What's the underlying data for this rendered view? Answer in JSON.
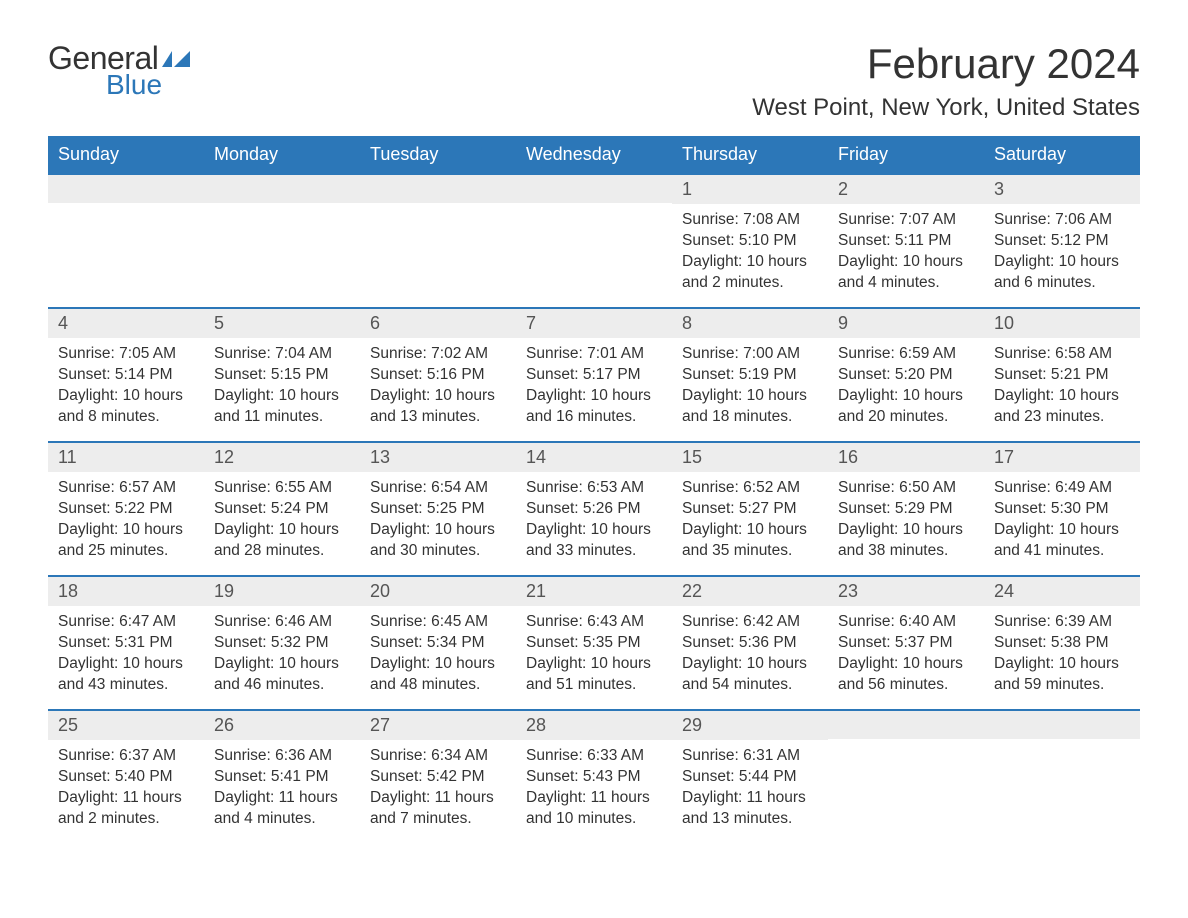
{
  "logo": {
    "general": "General",
    "blue": "Blue"
  },
  "title": "February 2024",
  "location": "West Point, New York, United States",
  "day_headers": [
    "Sunday",
    "Monday",
    "Tuesday",
    "Wednesday",
    "Thursday",
    "Friday",
    "Saturday"
  ],
  "colors": {
    "accent": "#2c77b8",
    "row_bg": "#ededed",
    "text": "#333333",
    "header_text": "#ffffff"
  },
  "weeks": [
    [
      {
        "day": "",
        "sunrise": "",
        "sunset": "",
        "daylight": ""
      },
      {
        "day": "",
        "sunrise": "",
        "sunset": "",
        "daylight": ""
      },
      {
        "day": "",
        "sunrise": "",
        "sunset": "",
        "daylight": ""
      },
      {
        "day": "",
        "sunrise": "",
        "sunset": "",
        "daylight": ""
      },
      {
        "day": "1",
        "sunrise": "Sunrise: 7:08 AM",
        "sunset": "Sunset: 5:10 PM",
        "daylight": "Daylight: 10 hours and 2 minutes."
      },
      {
        "day": "2",
        "sunrise": "Sunrise: 7:07 AM",
        "sunset": "Sunset: 5:11 PM",
        "daylight": "Daylight: 10 hours and 4 minutes."
      },
      {
        "day": "3",
        "sunrise": "Sunrise: 7:06 AM",
        "sunset": "Sunset: 5:12 PM",
        "daylight": "Daylight: 10 hours and 6 minutes."
      }
    ],
    [
      {
        "day": "4",
        "sunrise": "Sunrise: 7:05 AM",
        "sunset": "Sunset: 5:14 PM",
        "daylight": "Daylight: 10 hours and 8 minutes."
      },
      {
        "day": "5",
        "sunrise": "Sunrise: 7:04 AM",
        "sunset": "Sunset: 5:15 PM",
        "daylight": "Daylight: 10 hours and 11 minutes."
      },
      {
        "day": "6",
        "sunrise": "Sunrise: 7:02 AM",
        "sunset": "Sunset: 5:16 PM",
        "daylight": "Daylight: 10 hours and 13 minutes."
      },
      {
        "day": "7",
        "sunrise": "Sunrise: 7:01 AM",
        "sunset": "Sunset: 5:17 PM",
        "daylight": "Daylight: 10 hours and 16 minutes."
      },
      {
        "day": "8",
        "sunrise": "Sunrise: 7:00 AM",
        "sunset": "Sunset: 5:19 PM",
        "daylight": "Daylight: 10 hours and 18 minutes."
      },
      {
        "day": "9",
        "sunrise": "Sunrise: 6:59 AM",
        "sunset": "Sunset: 5:20 PM",
        "daylight": "Daylight: 10 hours and 20 minutes."
      },
      {
        "day": "10",
        "sunrise": "Sunrise: 6:58 AM",
        "sunset": "Sunset: 5:21 PM",
        "daylight": "Daylight: 10 hours and 23 minutes."
      }
    ],
    [
      {
        "day": "11",
        "sunrise": "Sunrise: 6:57 AM",
        "sunset": "Sunset: 5:22 PM",
        "daylight": "Daylight: 10 hours and 25 minutes."
      },
      {
        "day": "12",
        "sunrise": "Sunrise: 6:55 AM",
        "sunset": "Sunset: 5:24 PM",
        "daylight": "Daylight: 10 hours and 28 minutes."
      },
      {
        "day": "13",
        "sunrise": "Sunrise: 6:54 AM",
        "sunset": "Sunset: 5:25 PM",
        "daylight": "Daylight: 10 hours and 30 minutes."
      },
      {
        "day": "14",
        "sunrise": "Sunrise: 6:53 AM",
        "sunset": "Sunset: 5:26 PM",
        "daylight": "Daylight: 10 hours and 33 minutes."
      },
      {
        "day": "15",
        "sunrise": "Sunrise: 6:52 AM",
        "sunset": "Sunset: 5:27 PM",
        "daylight": "Daylight: 10 hours and 35 minutes."
      },
      {
        "day": "16",
        "sunrise": "Sunrise: 6:50 AM",
        "sunset": "Sunset: 5:29 PM",
        "daylight": "Daylight: 10 hours and 38 minutes."
      },
      {
        "day": "17",
        "sunrise": "Sunrise: 6:49 AM",
        "sunset": "Sunset: 5:30 PM",
        "daylight": "Daylight: 10 hours and 41 minutes."
      }
    ],
    [
      {
        "day": "18",
        "sunrise": "Sunrise: 6:47 AM",
        "sunset": "Sunset: 5:31 PM",
        "daylight": "Daylight: 10 hours and 43 minutes."
      },
      {
        "day": "19",
        "sunrise": "Sunrise: 6:46 AM",
        "sunset": "Sunset: 5:32 PM",
        "daylight": "Daylight: 10 hours and 46 minutes."
      },
      {
        "day": "20",
        "sunrise": "Sunrise: 6:45 AM",
        "sunset": "Sunset: 5:34 PM",
        "daylight": "Daylight: 10 hours and 48 minutes."
      },
      {
        "day": "21",
        "sunrise": "Sunrise: 6:43 AM",
        "sunset": "Sunset: 5:35 PM",
        "daylight": "Daylight: 10 hours and 51 minutes."
      },
      {
        "day": "22",
        "sunrise": "Sunrise: 6:42 AM",
        "sunset": "Sunset: 5:36 PM",
        "daylight": "Daylight: 10 hours and 54 minutes."
      },
      {
        "day": "23",
        "sunrise": "Sunrise: 6:40 AM",
        "sunset": "Sunset: 5:37 PM",
        "daylight": "Daylight: 10 hours and 56 minutes."
      },
      {
        "day": "24",
        "sunrise": "Sunrise: 6:39 AM",
        "sunset": "Sunset: 5:38 PM",
        "daylight": "Daylight: 10 hours and 59 minutes."
      }
    ],
    [
      {
        "day": "25",
        "sunrise": "Sunrise: 6:37 AM",
        "sunset": "Sunset: 5:40 PM",
        "daylight": "Daylight: 11 hours and 2 minutes."
      },
      {
        "day": "26",
        "sunrise": "Sunrise: 6:36 AM",
        "sunset": "Sunset: 5:41 PM",
        "daylight": "Daylight: 11 hours and 4 minutes."
      },
      {
        "day": "27",
        "sunrise": "Sunrise: 6:34 AM",
        "sunset": "Sunset: 5:42 PM",
        "daylight": "Daylight: 11 hours and 7 minutes."
      },
      {
        "day": "28",
        "sunrise": "Sunrise: 6:33 AM",
        "sunset": "Sunset: 5:43 PM",
        "daylight": "Daylight: 11 hours and 10 minutes."
      },
      {
        "day": "29",
        "sunrise": "Sunrise: 6:31 AM",
        "sunset": "Sunset: 5:44 PM",
        "daylight": "Daylight: 11 hours and 13 minutes."
      },
      {
        "day": "",
        "sunrise": "",
        "sunset": "",
        "daylight": ""
      },
      {
        "day": "",
        "sunrise": "",
        "sunset": "",
        "daylight": ""
      }
    ]
  ]
}
